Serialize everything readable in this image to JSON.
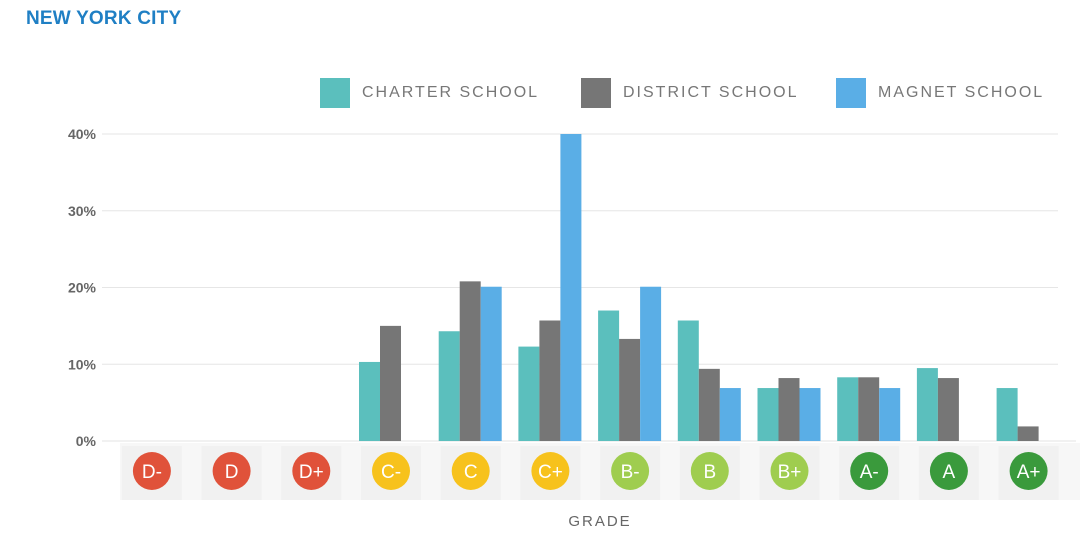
{
  "header": {
    "title": "NEW YORK CITY"
  },
  "legend": [
    {
      "label": "CHARTER SCHOOL",
      "color": "#5bbfbd"
    },
    {
      "label": "DISTRICT SCHOOL",
      "color": "#767676"
    },
    {
      "label": "MAGNET SCHOOL",
      "color": "#5aaee6"
    }
  ],
  "chart_data": {
    "type": "bar",
    "title": "NEW YORK CITY",
    "xlabel": "GRADE",
    "ylabel": "",
    "ylim": [
      0,
      40
    ],
    "yticks": [
      "0%",
      "10%",
      "20%",
      "30%",
      "40%"
    ],
    "ytick_values": [
      0,
      10,
      20,
      30,
      40
    ],
    "grid": true,
    "legend_position": "top-right",
    "categories": [
      "D-",
      "D",
      "D+",
      "C-",
      "C",
      "C+",
      "B-",
      "B",
      "B+",
      "A-",
      "A",
      "A+"
    ],
    "category_colors": [
      "#e0523a",
      "#e0523a",
      "#e0523a",
      "#f7c21c",
      "#f7c21c",
      "#f7c21c",
      "#9fcd4f",
      "#9fcd4f",
      "#9fcd4f",
      "#3a9a3c",
      "#3a9a3c",
      "#3a9a3c"
    ],
    "series": [
      {
        "name": "CHARTER SCHOOL",
        "color": "#5bbfbd",
        "values": [
          0,
          0,
          0,
          10.3,
          14.3,
          12.3,
          17.0,
          15.7,
          6.9,
          8.3,
          9.5,
          6.9
        ]
      },
      {
        "name": "DISTRICT SCHOOL",
        "color": "#767676",
        "values": [
          0,
          0,
          0,
          15.0,
          20.8,
          15.7,
          13.3,
          9.4,
          8.2,
          8.3,
          8.2,
          1.9
        ]
      },
      {
        "name": "MAGNET SCHOOL",
        "color": "#5aaee6",
        "values": [
          0,
          0,
          0,
          0,
          20.1,
          40.0,
          20.1,
          6.9,
          6.9,
          6.9,
          0,
          0
        ]
      }
    ]
  }
}
